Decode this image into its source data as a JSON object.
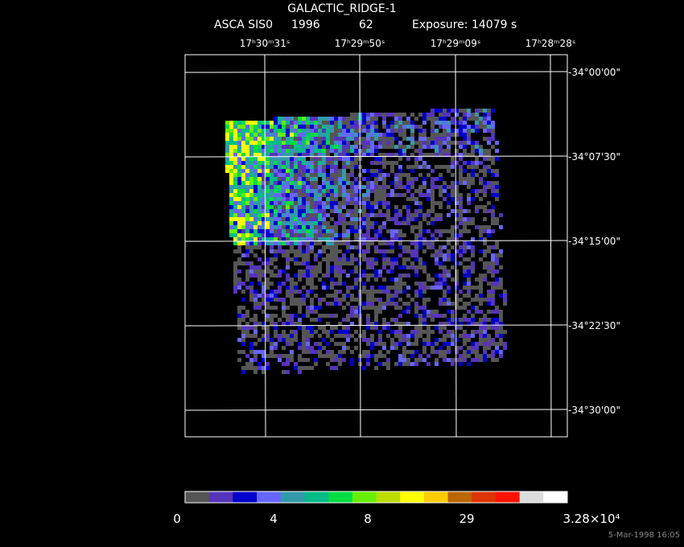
{
  "header": {
    "title": "GALACTIC_RIDGE-1",
    "instrument": "ASCA SIS0",
    "year": "1996",
    "number": "62",
    "exposure": "Exposure: 14079 s"
  },
  "ra_labels": [
    "17ʰ30ᵐ31ˢ",
    "17ʰ29ᵐ50ˢ",
    "17ʰ29ᵐ09ˢ",
    "17ʰ28ᵐ28ˢ"
  ],
  "dec_labels": [
    "-34°00'00\"",
    "-34°07'30\"",
    "-34°15'00\"",
    "-34°22'30\"",
    "-34°30'00\""
  ],
  "colorbar": {
    "colors": [
      "#555555",
      "#5533bb",
      "#0000cc",
      "#6666ff",
      "#3399aa",
      "#00bb88",
      "#00dd44",
      "#66ee00",
      "#bbdd00",
      "#ffff00",
      "#ffcc00",
      "#bb6600",
      "#dd3300",
      "#ff1100",
      "#dddddd",
      "#ffffff"
    ],
    "labels": [
      "0",
      "4",
      "8",
      "29",
      "3.28×10⁴"
    ]
  },
  "timestamp": "5-Mar-1998 16:05"
}
